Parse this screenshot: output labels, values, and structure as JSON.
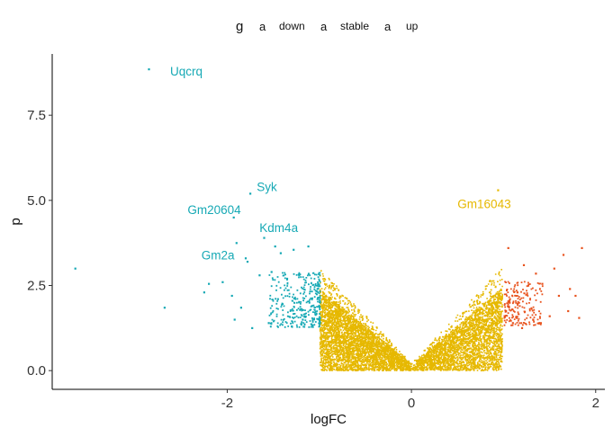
{
  "chart_data": {
    "type": "scatter",
    "title": "",
    "xlabel": "logFC",
    "ylabel": "p",
    "xlim": [
      -3.9,
      2.1
    ],
    "ylim": [
      -0.55,
      9.3
    ],
    "x_ticks": [
      -2,
      0,
      2
    ],
    "x_tick_labels": [
      "-2",
      "0",
      "2"
    ],
    "y_ticks": [
      0.0,
      2.5,
      5.0,
      7.5
    ],
    "y_tick_labels": [
      "0.0",
      "2.5",
      "5.0",
      "7.5"
    ],
    "grid": false,
    "legend": {
      "title": "g",
      "position": "top",
      "key_glyph": "a",
      "entries": [
        {
          "label": "down",
          "color": "#16a9b5"
        },
        {
          "label": "stable",
          "color": "#e6b800"
        },
        {
          "label": "up",
          "color": "#e8531e"
        }
      ]
    },
    "series": [
      {
        "name": "down",
        "color": "#16a9b5",
        "points": [
          [
            -2.85,
            8.85
          ],
          [
            -1.75,
            5.2
          ],
          [
            -1.93,
            4.5
          ],
          [
            -1.6,
            3.9
          ],
          [
            -1.9,
            3.75
          ],
          [
            -1.8,
            3.3
          ],
          [
            -1.78,
            3.2
          ],
          [
            -1.48,
            3.65
          ],
          [
            -1.12,
            3.65
          ],
          [
            -1.28,
            3.55
          ],
          [
            -1.42,
            3.45
          ],
          [
            -3.65,
            3.0
          ],
          [
            -2.2,
            2.55
          ],
          [
            -2.05,
            2.6
          ],
          [
            -2.25,
            2.3
          ],
          [
            -1.95,
            2.2
          ],
          [
            -1.52,
            2.9
          ],
          [
            -1.65,
            2.8
          ],
          [
            -1.35,
            2.7
          ],
          [
            -1.22,
            2.8
          ],
          [
            -1.85,
            1.85
          ],
          [
            -1.92,
            1.5
          ],
          [
            -1.55,
            1.4
          ],
          [
            -1.73,
            1.25
          ],
          [
            -2.68,
            1.85
          ],
          [
            -1.3,
            1.3
          ],
          [
            -1.18,
            1.5
          ],
          [
            -1.45,
            2.1
          ],
          [
            -1.08,
            1.9
          ],
          [
            -1.02,
            2.4
          ]
        ]
      },
      {
        "name": "stable",
        "color": "#e6b800",
        "points": [
          [
            0.94,
            5.3
          ]
        ]
      },
      {
        "name": "up",
        "color": "#e8531e",
        "points": [
          [
            1.05,
            3.6
          ],
          [
            1.85,
            3.6
          ],
          [
            1.65,
            3.4
          ],
          [
            1.55,
            3.0
          ],
          [
            1.22,
            3.1
          ],
          [
            1.35,
            2.85
          ],
          [
            1.42,
            2.55
          ],
          [
            1.72,
            2.4
          ],
          [
            1.78,
            2.2
          ],
          [
            1.6,
            2.2
          ],
          [
            1.7,
            1.75
          ],
          [
            1.1,
            1.4
          ],
          [
            1.2,
            1.25
          ],
          [
            1.32,
            1.5
          ],
          [
            1.05,
            2.0
          ],
          [
            1.15,
            2.3
          ],
          [
            1.5,
            1.6
          ],
          [
            1.82,
            1.55
          ]
        ]
      }
    ],
    "annotations": [
      {
        "text": "Uqcrq",
        "x": -2.62,
        "y": 8.8,
        "color": "#16a9b5"
      },
      {
        "text": "Syk",
        "x": -1.68,
        "y": 5.4,
        "color": "#16a9b5"
      },
      {
        "text": "Gm20604",
        "x": -2.43,
        "y": 4.73,
        "color": "#16a9b5"
      },
      {
        "text": "Kdm4a",
        "x": -1.65,
        "y": 4.2,
        "color": "#16a9b5"
      },
      {
        "text": "Gm2a",
        "x": -2.28,
        "y": 3.4,
        "color": "#16a9b5"
      },
      {
        "text": "Gm16043",
        "x": 0.5,
        "y": 4.9,
        "color": "#e6b800"
      }
    ]
  }
}
